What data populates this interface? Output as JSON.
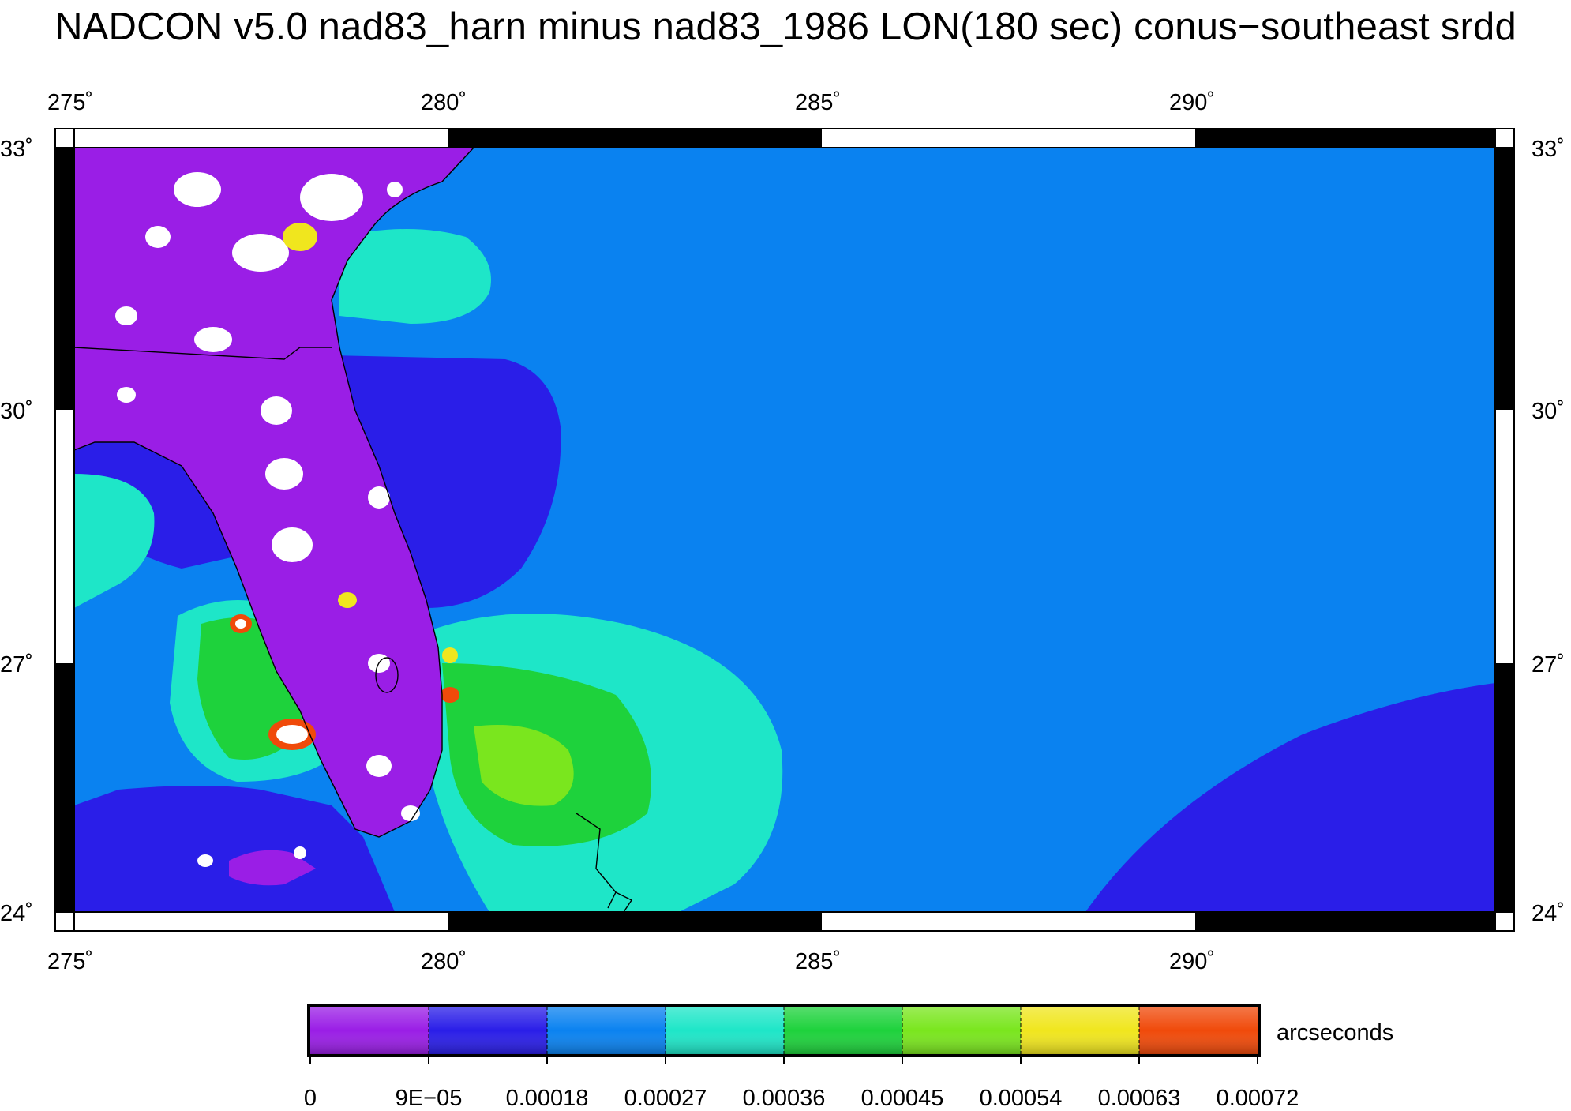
{
  "title": "NADCON v5.0 nad83_harn minus nad83_1986 LON(180 sec) conus−southeast srdd",
  "map": {
    "lon_range": [
      275,
      294
    ],
    "lat_range": [
      24,
      33
    ],
    "lon_ticks": [
      "275˚",
      "280˚",
      "285˚",
      "290˚"
    ],
    "lat_ticks": [
      "33˚",
      "30˚",
      "27˚",
      "24˚"
    ],
    "region": "Southeastern United States / Florida",
    "frame_style": "checkered black-white border"
  },
  "colorbar": {
    "unit_label": "arcseconds",
    "tick_labels": [
      "0",
      "9E−05",
      "0.00018",
      "0.00027",
      "0.00036",
      "0.00045",
      "0.00054",
      "0.00063",
      "0.00072"
    ],
    "colors": [
      "#9a1ee6",
      "#2a1ee8",
      "#0a82f0",
      "#1ee6c8",
      "#1ed23c",
      "#7ae61e",
      "#f0e61e",
      "#f04a0a"
    ]
  },
  "field_colors": {
    "background": "#0a82f0",
    "low": "#2a1ee8",
    "lowest": "#9a1ee6",
    "mid": "#1ee6c8",
    "high": "#1ed23c",
    "higher": "#7ae61e",
    "peak": "#f0e61e",
    "max": "#f04a0a"
  }
}
